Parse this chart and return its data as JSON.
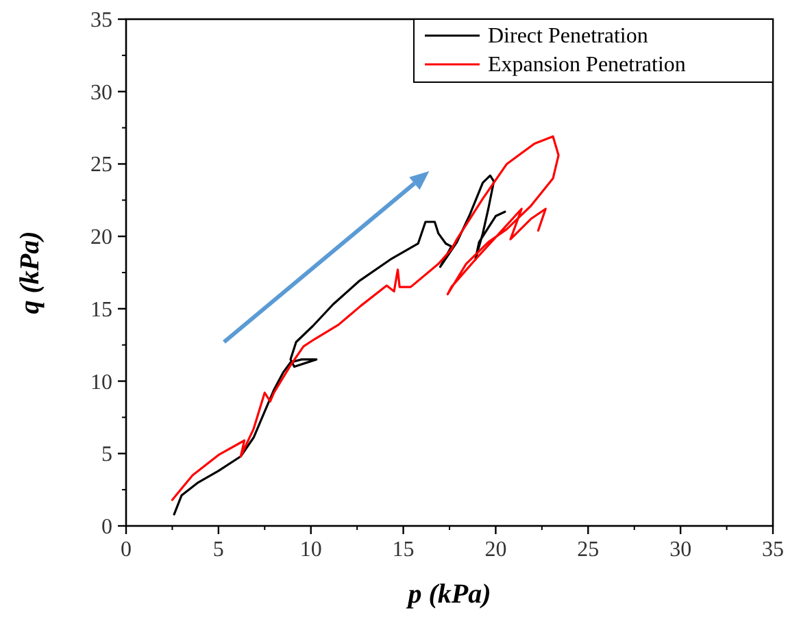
{
  "chart_data": {
    "type": "line",
    "xlabel": "p (kPa)",
    "ylabel": "q (kPa)",
    "xlim": [
      0,
      35
    ],
    "ylim": [
      0,
      35
    ],
    "xticks": [
      0,
      5,
      10,
      15,
      20,
      25,
      30,
      35
    ],
    "yticks": [
      0,
      5,
      10,
      15,
      20,
      25,
      30,
      35
    ],
    "grid": false,
    "legend": "top right",
    "marker": "none",
    "line_style": "solid",
    "series": [
      {
        "name": "Direct Penetration",
        "color": "#000000",
        "x": [
          2.6,
          3.0,
          3.9,
          5.0,
          6.2,
          6.9,
          7.5,
          8.0,
          8.5,
          8.9,
          9.5,
          10.3,
          9.1,
          8.9,
          9.2,
          10.1,
          11.2,
          12.6,
          14.3,
          15.8,
          16.2,
          16.7,
          16.9,
          17.3,
          17.6,
          17.0,
          17.9,
          18.6,
          19.3,
          19.7,
          19.9,
          19.6,
          19.3,
          18.9,
          19.1,
          20.0,
          20.5
        ],
        "values": [
          0.8,
          2.1,
          3.0,
          3.8,
          4.8,
          6.1,
          7.9,
          9.4,
          10.6,
          11.3,
          11.5,
          11.5,
          11.0,
          11.5,
          12.7,
          13.8,
          15.3,
          16.9,
          18.4,
          19.5,
          21.0,
          21.0,
          20.2,
          19.5,
          19.3,
          17.9,
          19.6,
          21.5,
          23.7,
          24.2,
          23.8,
          21.9,
          20.2,
          18.4,
          19.6,
          21.4,
          21.7
        ]
      },
      {
        "name": "Expansion Penetration",
        "color": "#ff0000",
        "x": [
          2.5,
          3.6,
          5.0,
          6.4,
          6.2,
          6.9,
          7.5,
          7.8,
          8.0,
          8.9,
          9.6,
          10.2,
          11.5,
          12.7,
          14.1,
          14.5,
          14.7,
          14.8,
          15.4,
          16.9,
          17.6,
          17.9,
          19.3,
          20.6,
          22.1,
          23.1,
          23.4,
          23.1,
          21.9,
          20.6,
          19.6,
          18.4,
          17.4,
          17.6,
          18.9,
          20.4,
          21.4,
          20.8,
          21.9,
          22.7,
          22.3
        ],
        "values": [
          1.8,
          3.5,
          4.9,
          5.9,
          4.8,
          6.7,
          9.2,
          8.6,
          9.2,
          11.1,
          12.4,
          12.9,
          13.9,
          15.2,
          16.6,
          16.2,
          17.7,
          16.5,
          16.5,
          18.1,
          19.1,
          19.8,
          22.6,
          25.0,
          26.4,
          26.9,
          25.6,
          24.0,
          22.1,
          20.5,
          19.6,
          18.1,
          16.0,
          16.5,
          18.4,
          20.5,
          21.9,
          19.8,
          21.2,
          21.9,
          20.4
        ]
      }
    ]
  }
}
